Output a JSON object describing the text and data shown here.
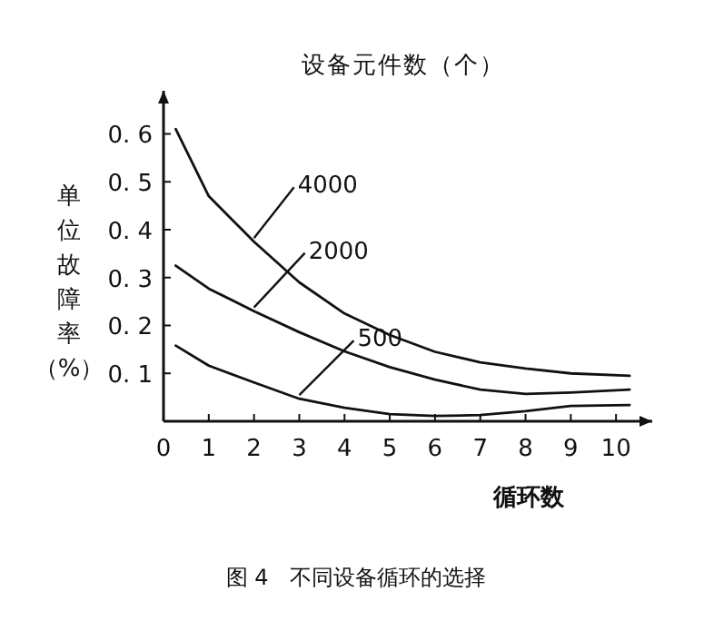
{
  "chart_data": {
    "type": "line",
    "legend_title": "设备元件数（个）",
    "xlabel": "循环数",
    "ylabel": "单位故障率（%）",
    "annotations": [
      "图 4　不同设备循环的选择"
    ],
    "xlim": [
      0,
      10.8
    ],
    "ylim": [
      0,
      0.69
    ],
    "xticks": [
      0,
      1,
      2,
      3,
      4,
      5,
      6,
      7,
      8,
      9,
      10
    ],
    "yticks": [
      0.1,
      0.2,
      0.3,
      0.4,
      0.5,
      0.6
    ],
    "grid": false,
    "marker": "none",
    "line_style": "solid",
    "series": [
      {
        "name": "4000",
        "color": "#111111",
        "x": [
          0.27,
          1,
          2,
          3,
          4,
          5,
          6,
          7,
          8,
          9,
          10.3
        ],
        "values": [
          0.61,
          0.47,
          0.375,
          0.29,
          0.225,
          0.18,
          0.145,
          0.123,
          0.11,
          0.1,
          0.095
        ]
      },
      {
        "name": "2000",
        "color": "#111111",
        "x": [
          0.27,
          1,
          2,
          3,
          4,
          5,
          6,
          7,
          8,
          9,
          10.3
        ],
        "values": [
          0.325,
          0.277,
          0.23,
          0.186,
          0.146,
          0.113,
          0.087,
          0.066,
          0.057,
          0.06,
          0.066
        ]
      },
      {
        "name": "500",
        "color": "#111111",
        "x": [
          0.27,
          1,
          2,
          3,
          4,
          5,
          6,
          7,
          8,
          9,
          10.3
        ],
        "values": [
          0.158,
          0.116,
          0.081,
          0.047,
          0.028,
          0.015,
          0.011,
          0.013,
          0.021,
          0.032,
          0.034
        ]
      }
    ]
  }
}
